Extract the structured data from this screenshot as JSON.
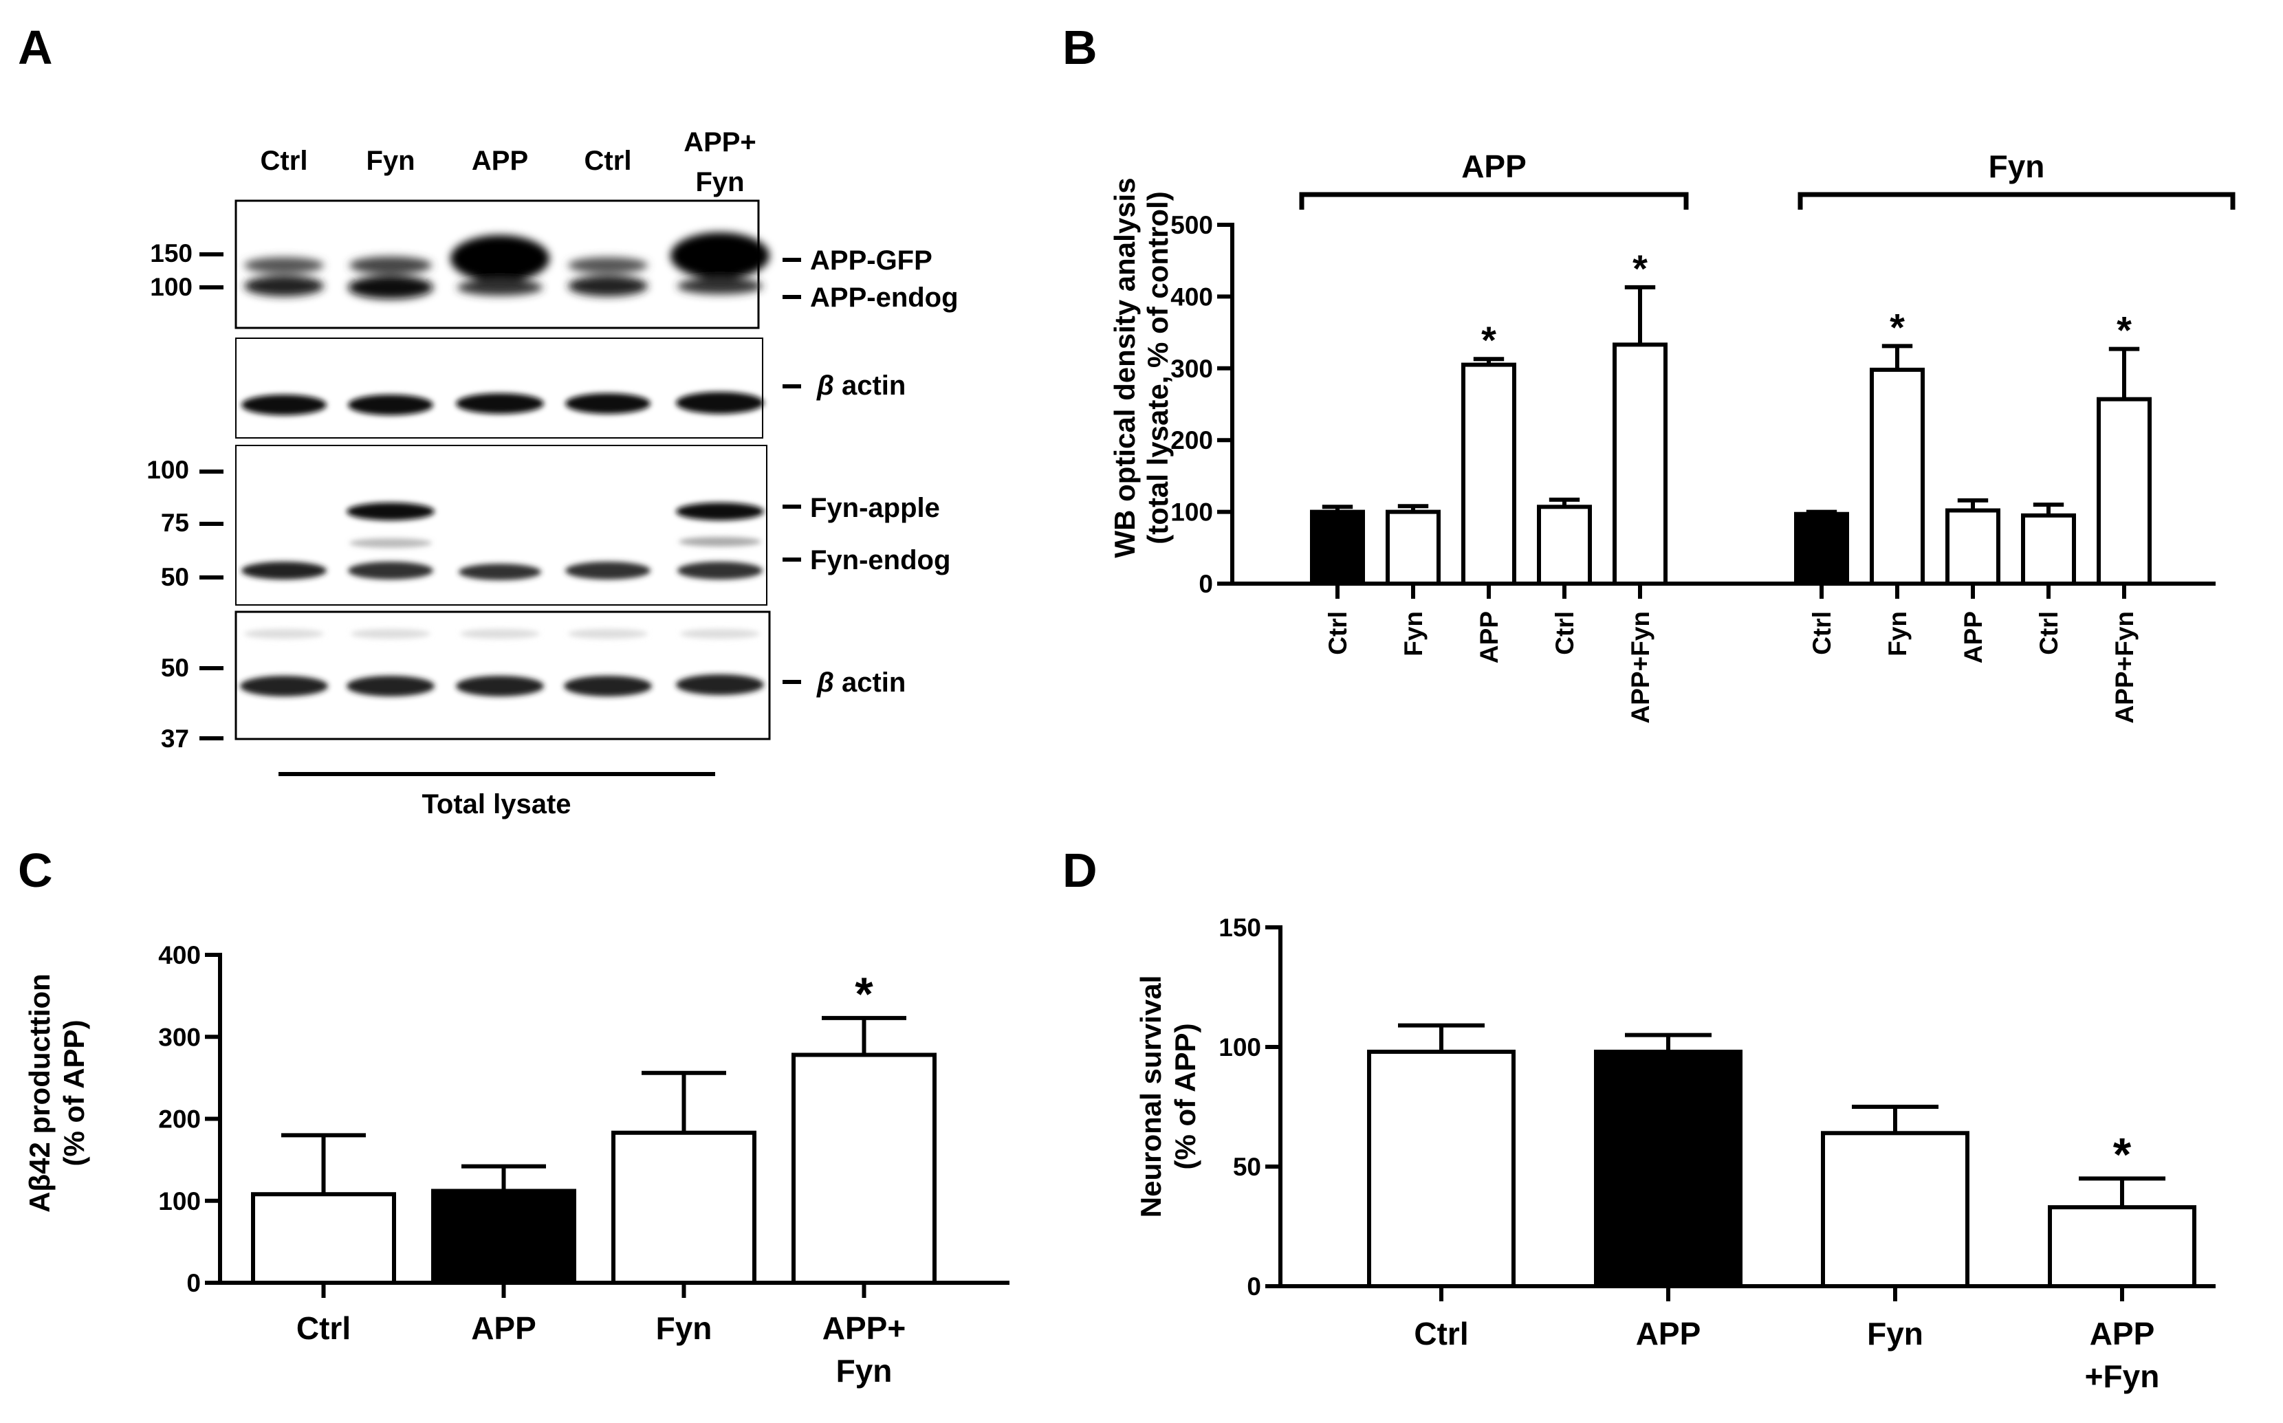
{
  "panels": {
    "A": "A",
    "B": "B",
    "C": "C",
    "D": "D"
  },
  "western_blot": {
    "lanes": [
      "Ctrl",
      "Fyn",
      "APP",
      "Ctrl",
      "APP+"
    ],
    "lane5_second_line": "Fyn",
    "bottom_label": "Total lysate",
    "blot1": {
      "markers": [
        "150",
        "100"
      ],
      "bands": [
        "APP-GFP",
        "APP-endog"
      ]
    },
    "blot2": {
      "bands": [
        "β actin"
      ],
      "beta_symbol": "β",
      "beta_word": "actin"
    },
    "blot3": {
      "markers": [
        "100",
        "75",
        "50"
      ],
      "bands": [
        "Fyn-apple",
        "Fyn-endog"
      ]
    },
    "blot4": {
      "markers": [
        "50",
        "37"
      ],
      "bands": [
        "β actin"
      ],
      "beta_symbol": "β",
      "beta_word": "actin"
    }
  },
  "chart_data": [
    {
      "panel": "B",
      "type": "bar",
      "ylabel_line1": "WB optical density analysis",
      "ylabel_line2": "(total lysate, % of control)",
      "ylim": [
        0,
        500
      ],
      "yticks": [
        0,
        100,
        200,
        300,
        400,
        500
      ],
      "groups": [
        {
          "name": "APP",
          "categories": [
            "Ctrl",
            "Fyn",
            "APP",
            "Ctrl",
            "APP+Fyn"
          ],
          "values": [
            100,
            100,
            305,
            107,
            333
          ],
          "errors": [
            7,
            8,
            8,
            10,
            80
          ],
          "filled": [
            true,
            false,
            false,
            false,
            false
          ],
          "significant": [
            false,
            false,
            true,
            false,
            true
          ]
        },
        {
          "name": "Fyn",
          "categories": [
            "Ctrl",
            "Fyn",
            "APP",
            "Ctrl",
            "APP+Fyn"
          ],
          "values": [
            97,
            298,
            102,
            95,
            257
          ],
          "errors": [
            3,
            33,
            14,
            15,
            70
          ],
          "filled": [
            true,
            false,
            false,
            false,
            false
          ],
          "significant": [
            false,
            true,
            false,
            false,
            true
          ]
        }
      ],
      "annotation": "*",
      "colors": {
        "filled": "#000000",
        "open": "#ffffff"
      }
    },
    {
      "panel": "C",
      "type": "bar",
      "ylabel_line1": "Aβ42 producttion",
      "ylabel_line2": "(% of APP)",
      "ylim": [
        0,
        400
      ],
      "yticks": [
        0,
        100,
        200,
        300,
        400
      ],
      "categories": [
        "Ctrl",
        "APP",
        "Fyn",
        "APP+"
      ],
      "category_second_line": [
        "",
        "",
        "",
        "Fyn"
      ],
      "values": [
        108,
        112,
        183,
        278
      ],
      "errors": [
        72,
        30,
        73,
        45
      ],
      "filled": [
        false,
        true,
        false,
        false
      ],
      "significant": [
        false,
        false,
        false,
        true
      ],
      "annotation": "*"
    },
    {
      "panel": "D",
      "type": "bar",
      "ylabel_line1": "Neuronal survival",
      "ylabel_line2": "(% of APP)",
      "ylim": [
        0,
        150
      ],
      "yticks": [
        0,
        50,
        100,
        150
      ],
      "categories": [
        "Ctrl",
        "APP",
        "Fyn",
        "APP"
      ],
      "category_second_line": [
        "",
        "",
        "",
        "+Fyn"
      ],
      "values": [
        98,
        98,
        64,
        33
      ],
      "errors": [
        11,
        7,
        11,
        12
      ],
      "filled": [
        false,
        true,
        false,
        false
      ],
      "significant": [
        false,
        false,
        false,
        true
      ],
      "annotation": "*"
    }
  ]
}
